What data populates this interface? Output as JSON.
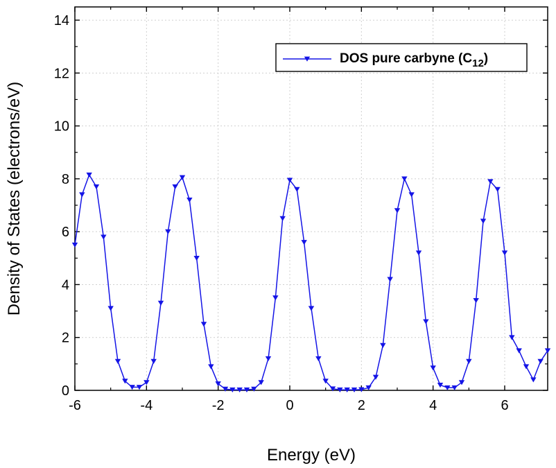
{
  "chart_data": {
    "type": "line",
    "title": "",
    "xlabel": "Energy (eV)",
    "ylabel": "Density of States (electrons/eV)",
    "xlim": [
      -6,
      7.2
    ],
    "ylim": [
      0,
      14.5
    ],
    "xticks": [
      -6,
      -4,
      -2,
      0,
      2,
      4,
      6
    ],
    "xtick_labels": [
      "-6",
      "-4",
      "-2",
      "0",
      "2",
      "4",
      "6"
    ],
    "yticks": [
      0,
      2,
      4,
      6,
      8,
      10,
      12,
      14
    ],
    "ytick_labels": [
      "0",
      "2",
      "4",
      "6",
      "8",
      "10",
      "12",
      "14"
    ],
    "grid": true,
    "legend_position": "top-right",
    "series": [
      {
        "name": "DOS pure carbyne (C12)",
        "legend_main": "DOS pure carbyne (C",
        "legend_sub": "12",
        "legend_close": ")",
        "color": "#1414e6",
        "marker": "triangle-down",
        "x": [
          -6.0,
          -5.8,
          -5.6,
          -5.4,
          -5.2,
          -5.0,
          -4.8,
          -4.6,
          -4.4,
          -4.2,
          -4.0,
          -3.8,
          -3.6,
          -3.4,
          -3.2,
          -3.0,
          -2.8,
          -2.6,
          -2.4,
          -2.2,
          -2.0,
          -1.8,
          -1.6,
          -1.4,
          -1.2,
          -1.0,
          -0.8,
          -0.6,
          -0.4,
          -0.2,
          0.0,
          0.2,
          0.4,
          0.6,
          0.8,
          1.0,
          1.2,
          1.4,
          1.6,
          1.8,
          2.0,
          2.2,
          2.4,
          2.6,
          2.8,
          3.0,
          3.2,
          3.4,
          3.6,
          3.8,
          4.0,
          4.2,
          4.4,
          4.6,
          4.8,
          5.0,
          5.2,
          5.4,
          5.6,
          5.8,
          6.0,
          6.2,
          6.4,
          6.6,
          6.8,
          7.0,
          7.2
        ],
        "y": [
          5.5,
          7.4,
          8.15,
          7.7,
          5.8,
          3.1,
          1.1,
          0.35,
          0.12,
          0.12,
          0.3,
          1.1,
          3.3,
          6.0,
          7.7,
          8.05,
          7.2,
          5.0,
          2.5,
          0.9,
          0.25,
          0.05,
          0.02,
          0.02,
          0.02,
          0.05,
          0.3,
          1.2,
          3.5,
          6.5,
          7.95,
          7.6,
          5.6,
          3.1,
          1.2,
          0.35,
          0.06,
          0.02,
          0.02,
          0.02,
          0.03,
          0.1,
          0.5,
          1.7,
          4.2,
          6.8,
          8.0,
          7.4,
          5.2,
          2.6,
          0.85,
          0.2,
          0.1,
          0.1,
          0.3,
          1.1,
          3.4,
          6.4,
          7.9,
          7.6,
          5.2,
          2.0,
          1.5,
          0.9,
          0.4,
          1.1,
          1.5
        ]
      }
    ]
  }
}
